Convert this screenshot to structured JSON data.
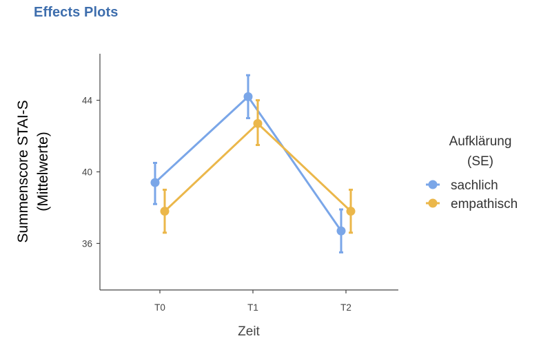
{
  "page": {
    "title": "Effects Plots"
  },
  "colors": {
    "sachlich": "#7aa6e8",
    "empathisch": "#ebb74a",
    "axis": "#444444"
  },
  "chart_data": {
    "type": "line",
    "title": "",
    "xlabel": "Zeit",
    "ylabel_lines": [
      "Summenscore STAI-S",
      "(Mittelwerte)"
    ],
    "categories": [
      "T0",
      "T1",
      "T2"
    ],
    "ylim": [
      33.4,
      46.6
    ],
    "yticks": [
      36,
      40,
      44
    ],
    "ytick_labels": [
      "36",
      "40",
      "44"
    ],
    "grid": false,
    "legend": {
      "title_lines": [
        "Aufklärung",
        "(SE)"
      ],
      "placement": "right"
    },
    "series": [
      {
        "name": "sachlich",
        "color": "#7aa6e8",
        "values": [
          39.4,
          44.2,
          36.7
        ],
        "lower": [
          38.2,
          43.0,
          35.5
        ],
        "upper": [
          40.5,
          45.4,
          37.9
        ]
      },
      {
        "name": "empathisch",
        "color": "#ebb74a",
        "values": [
          37.8,
          42.7,
          37.8
        ],
        "lower": [
          36.6,
          41.5,
          36.6
        ],
        "upper": [
          39.0,
          44.0,
          39.0
        ]
      }
    ]
  }
}
